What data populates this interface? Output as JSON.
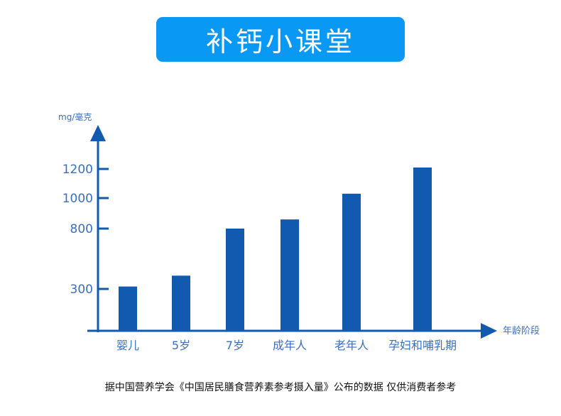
{
  "title": "补钙小课堂",
  "footer": "据中国营养学会《中国居民膳食营养素参考摄入量》公布的数据  仅供消费者参考",
  "colors": {
    "title_bg": "#0a98f5",
    "bar": "#1259b0",
    "axis": "#1259b0",
    "label": "#3a6fc0"
  },
  "chart_data": {
    "type": "bar",
    "ylabel": "mg/毫克",
    "xlabel": "年龄阶段",
    "categories": [
      "婴儿",
      "5岁",
      "7岁",
      "成年人",
      "老年人",
      "孕妇和哺乳期"
    ],
    "values": [
      320,
      410,
      800,
      860,
      1030,
      1210
    ],
    "yticks": [
      300,
      800,
      1000,
      1200
    ],
    "y_scale": "non-linear",
    "grid": false,
    "legend": "none"
  }
}
